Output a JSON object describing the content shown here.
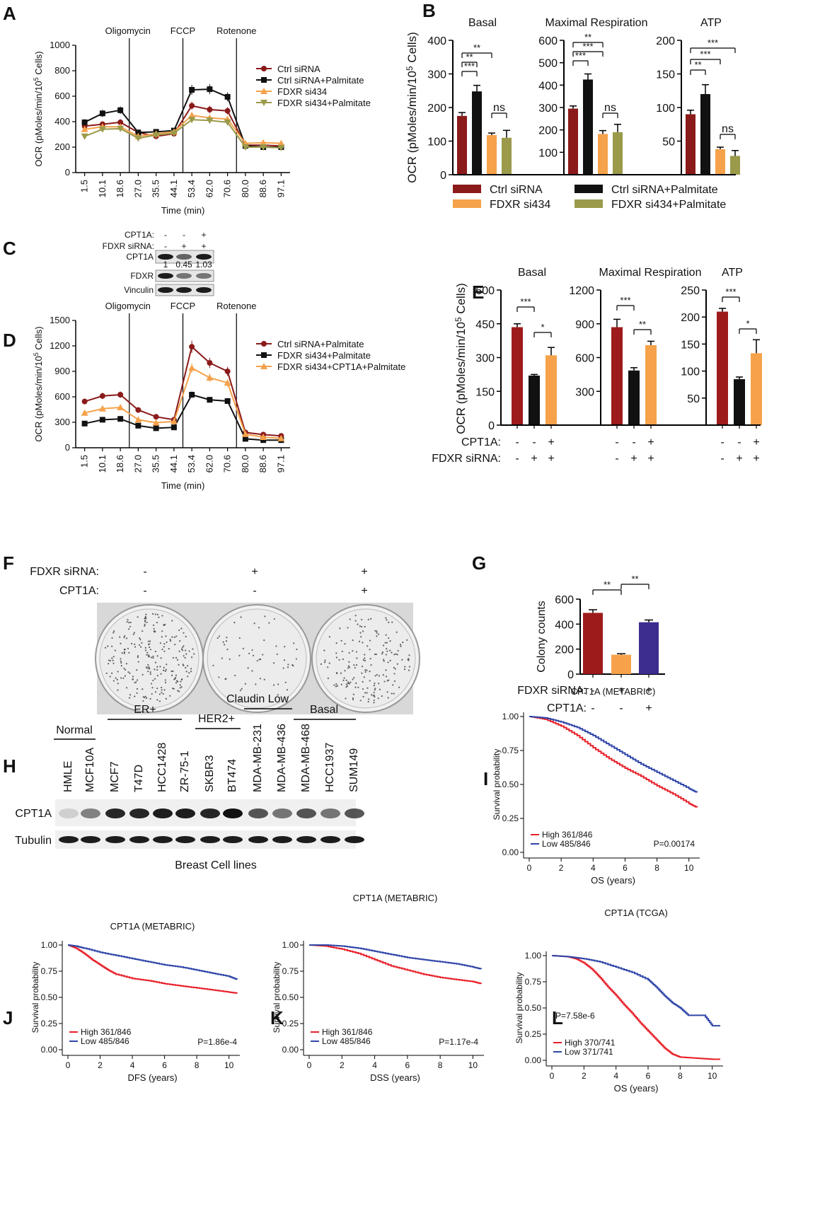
{
  "colors": {
    "ctrl": "#8b1a1a",
    "black": "#111111",
    "orange": "#f5a24b",
    "olive": "#9a9a4a",
    "km_high": "#e8202a",
    "km_low": "#3046a8",
    "purple": "#3c2d8f",
    "dkred": "#9e1b1b"
  },
  "panels": {
    "A": "A",
    "B": "B",
    "C": "C",
    "D": "D",
    "E": "E",
    "F": "F",
    "G": "G",
    "H": "H",
    "I": "I",
    "J": "J",
    "K": "K",
    "L": "L"
  },
  "stats": {
    "ns": "ns",
    "s1": "*",
    "s2": "**",
    "s3": "***"
  },
  "chart_data": [
    {
      "id": "A",
      "type": "line",
      "xlabel": "Time (min)",
      "ylabel": "OCR (pMoles/min/10^5 Cells)",
      "ylabel_main": "OCR (pMoles/min/10",
      "ylabel_exp": "5",
      "ylabel_tail": " Cells)",
      "ylim": [
        0,
        1000
      ],
      "yticks": [
        "0",
        "200",
        "400",
        "600",
        "800",
        "1000"
      ],
      "x": [
        "1.5",
        "10.1",
        "18.6",
        "27.0",
        "35.5",
        "44.1",
        "53.4",
        "62.0",
        "70.6",
        "80.0",
        "88.6",
        "97.1"
      ],
      "injections": [
        "Oligomycin",
        "FCCP",
        "Rotenone"
      ],
      "series": [
        {
          "name": "Ctrl siRNA",
          "values": [
            365,
            380,
            395,
            315,
            285,
            305,
            525,
            495,
            485,
            215,
            215,
            210
          ]
        },
        {
          "name": "Ctrl siRNA+Palmitate",
          "values": [
            395,
            465,
            490,
            315,
            320,
            330,
            650,
            655,
            595,
            210,
            200,
            200
          ]
        },
        {
          "name": "FDXR si434",
          "values": [
            340,
            360,
            360,
            285,
            305,
            320,
            450,
            430,
            420,
            230,
            235,
            230
          ]
        },
        {
          "name": "FDXR si434+Palmitate",
          "values": [
            285,
            340,
            345,
            270,
            295,
            310,
            415,
            410,
            395,
            200,
            200,
            195
          ]
        }
      ]
    },
    {
      "id": "B",
      "type": "bar",
      "ylabel": "OCR (pMoles/min/10^5 Cells)",
      "ylabel_main": "OCR (pMoles/min/10",
      "ylabel_exp": "5",
      "ylabel_tail": " Cells)",
      "legend": [
        "Ctrl siRNA",
        "Ctrl siRNA+Palmitate",
        "FDXR si434",
        "FDXR si434+Palmitate"
      ],
      "groups": [
        {
          "title": "Basal",
          "yticks": [
            "0",
            "100",
            "200",
            "300",
            "400"
          ],
          "ylim": [
            0,
            400
          ],
          "values": [
            175,
            248,
            118,
            110
          ],
          "errors": [
            10,
            18,
            6,
            22
          ]
        },
        {
          "title": "Maximal Respiration",
          "yticks": [
            "100",
            "200",
            "300",
            "400",
            "500",
            "600"
          ],
          "ylim": [
            0,
            600
          ],
          "values": [
            295,
            425,
            182,
            190
          ],
          "errors": [
            12,
            25,
            15,
            35
          ]
        },
        {
          "title": "ATP",
          "yticks": [
            "50",
            "100",
            "150",
            "200"
          ],
          "ylim": [
            0,
            200
          ],
          "values": [
            90,
            120,
            38,
            28
          ],
          "errors": [
            6,
            14,
            3,
            8
          ]
        }
      ]
    },
    {
      "id": "D",
      "type": "line",
      "xlabel": "Time (min)",
      "ylabel": "OCR (pMoles/min/10^5 Cells)",
      "ylabel_main": "OCR (pMoles/min/10",
      "ylabel_exp": "5",
      "ylabel_tail": " Cells)",
      "ylim": [
        0,
        1500
      ],
      "yticks": [
        "0",
        "300",
        "600",
        "900",
        "1200",
        "1500"
      ],
      "x": [
        "1.5",
        "10.1",
        "18.6",
        "27.0",
        "35.5",
        "44.1",
        "53.4",
        "62.0",
        "70.6",
        "80.0",
        "88.6",
        "97.1"
      ],
      "injections": [
        "Oligomycin",
        "FCCP",
        "Rotenone"
      ],
      "series": [
        {
          "name": "Ctrl siRNA+Palmitate",
          "values": [
            545,
            610,
            625,
            445,
            365,
            330,
            1190,
            1000,
            900,
            180,
            155,
            140
          ]
        },
        {
          "name": "FDXR si434+Palmitate",
          "values": [
            285,
            330,
            340,
            260,
            230,
            240,
            625,
            565,
            550,
            105,
            90,
            90
          ]
        },
        {
          "name": "FDXR si434+CPT1A+Palmitate",
          "values": [
            410,
            460,
            475,
            330,
            295,
            310,
            940,
            825,
            765,
            160,
            125,
            110
          ]
        }
      ]
    },
    {
      "id": "E",
      "type": "bar",
      "ylabel": "OCR (pMoles/min/10^5 Cells)",
      "ylabel_main": "OCR (pMoles/min/10",
      "ylabel_exp": "5",
      "ylabel_tail": " Cells)",
      "row_labels": [
        "CPT1A:",
        "FDXR siRNA:"
      ],
      "row_cpt": [
        "-",
        "-",
        "+"
      ],
      "row_fdxr": [
        "-",
        "+",
        "+"
      ],
      "groups": [
        {
          "title": "Basal",
          "yticks": [
            "0",
            "150",
            "300",
            "450",
            "600"
          ],
          "ylim": [
            0,
            600
          ],
          "values": [
            435,
            220,
            310
          ],
          "errors": [
            15,
            5,
            35
          ]
        },
        {
          "title": "Maximal Respiration",
          "yticks": [
            "300",
            "600",
            "900",
            "1200"
          ],
          "ylim": [
            0,
            1200
          ],
          "values": [
            870,
            485,
            710
          ],
          "errors": [
            70,
            25,
            35
          ]
        },
        {
          "title": "ATP",
          "yticks": [
            "50",
            "100",
            "150",
            "200",
            "250"
          ],
          "ylim": [
            0,
            250
          ],
          "values": [
            210,
            85,
            133
          ],
          "errors": [
            6,
            4,
            25
          ]
        }
      ]
    },
    {
      "id": "G",
      "type": "bar",
      "ylabel": "Colony counts",
      "yticks": [
        "0",
        "200",
        "400",
        "600"
      ],
      "ylim": [
        0,
        600
      ],
      "values": [
        490,
        155,
        415
      ],
      "errors": [
        25,
        8,
        18
      ],
      "row_labels": [
        "FDXR siRNA:",
        "CPT1A:"
      ],
      "row_fdxr": [
        "-",
        "+",
        "+"
      ],
      "row_cpt": [
        "-",
        "-",
        "+"
      ]
    },
    {
      "id": "I",
      "type": "line",
      "title": "CPT1A (METABRIC)",
      "xlabel": "OS (years)",
      "ylabel": "Survival probability",
      "xlim": [
        0,
        10.5
      ],
      "ylim": [
        0,
        1
      ],
      "xticks": [
        "0",
        "2",
        "4",
        "6",
        "8",
        "10"
      ],
      "yticks": [
        "0.00",
        "0.25",
        "0.50",
        "0.75",
        "1.00"
      ],
      "legend": [
        "High 361/846",
        "Low  485/846"
      ],
      "pvalue": "P=0.00174",
      "series": [
        {
          "name": "High",
          "x": [
            0,
            1,
            2,
            3,
            4,
            5,
            6,
            7,
            8,
            9,
            10,
            10.5
          ],
          "y": [
            1,
            0.98,
            0.93,
            0.86,
            0.77,
            0.69,
            0.62,
            0.56,
            0.49,
            0.43,
            0.36,
            0.33
          ]
        },
        {
          "name": "Low",
          "x": [
            0,
            1,
            2,
            3,
            4,
            5,
            6,
            7,
            8,
            9,
            10,
            10.5
          ],
          "y": [
            1,
            0.99,
            0.96,
            0.92,
            0.86,
            0.79,
            0.72,
            0.65,
            0.59,
            0.53,
            0.47,
            0.44
          ]
        }
      ]
    },
    {
      "id": "J",
      "type": "line",
      "title": "CPT1A (METABRIC)",
      "xlabel": "DFS (years)",
      "ylabel": "Survival probability",
      "xlim": [
        0,
        10.5
      ],
      "ylim": [
        0,
        1
      ],
      "xticks": [
        "0",
        "2",
        "4",
        "6",
        "8",
        "10"
      ],
      "yticks": [
        "0.00",
        "0.25",
        "0.50",
        "0.75",
        "1.00"
      ],
      "legend": [
        "High 361/846",
        "Low  485/846"
      ],
      "pvalue": "P=1.86e-4",
      "series": [
        {
          "name": "High",
          "x": [
            0,
            0.5,
            1,
            1.5,
            2,
            2.5,
            3,
            4,
            5,
            6,
            7,
            8,
            9,
            10,
            10.5
          ],
          "y": [
            1,
            0.97,
            0.92,
            0.86,
            0.81,
            0.76,
            0.72,
            0.68,
            0.66,
            0.63,
            0.61,
            0.59,
            0.57,
            0.55,
            0.54
          ]
        },
        {
          "name": "Low",
          "x": [
            0,
            0.5,
            1,
            2,
            3,
            4,
            5,
            6,
            7,
            8,
            9,
            10,
            10.5
          ],
          "y": [
            1,
            0.99,
            0.97,
            0.93,
            0.9,
            0.87,
            0.84,
            0.81,
            0.79,
            0.76,
            0.73,
            0.7,
            0.67
          ]
        }
      ]
    },
    {
      "id": "K",
      "type": "line",
      "title": "CPT1A (METABRIC)",
      "xlabel": "DSS (years)",
      "ylabel": "Survival probability",
      "xlim": [
        0,
        10.5
      ],
      "ylim": [
        0,
        1
      ],
      "xticks": [
        "0",
        "2",
        "4",
        "6",
        "8",
        "10"
      ],
      "yticks": [
        "0.00",
        "0.25",
        "0.50",
        "0.75",
        "1.00"
      ],
      "legend": [
        "High 361/846",
        "Low  485/846"
      ],
      "pvalue": "P=1.17e-4",
      "series": [
        {
          "name": "High",
          "x": [
            0,
            1,
            2,
            3,
            4,
            5,
            6,
            7,
            8,
            9,
            10,
            10.5
          ],
          "y": [
            1,
            0.99,
            0.96,
            0.92,
            0.86,
            0.8,
            0.76,
            0.72,
            0.69,
            0.67,
            0.65,
            0.63
          ]
        },
        {
          "name": "Low",
          "x": [
            0,
            1,
            2,
            3,
            4,
            5,
            6,
            7,
            8,
            9,
            10,
            10.5
          ],
          "y": [
            1,
            1,
            0.99,
            0.97,
            0.94,
            0.91,
            0.88,
            0.86,
            0.84,
            0.82,
            0.79,
            0.77
          ]
        }
      ]
    },
    {
      "id": "L",
      "type": "line",
      "title": "CPT1A (TCGA)",
      "xlabel": "OS (years)",
      "ylabel": "Survival probability",
      "xlim": [
        0,
        10.5
      ],
      "ylim": [
        0,
        1
      ],
      "xticks": [
        "0",
        "2",
        "4",
        "6",
        "8",
        "10"
      ],
      "yticks": [
        "0.00",
        "0.25",
        "0.50",
        "0.75",
        "1.00"
      ],
      "legend": [
        "High 370/741",
        "Low  371/741"
      ],
      "pvalue": "P=7.58e-6",
      "series": [
        {
          "name": "High",
          "x": [
            0,
            1,
            1.5,
            2,
            2.5,
            3,
            3.5,
            4,
            4.5,
            5,
            5.5,
            6,
            6.5,
            7,
            7.5,
            8,
            9,
            10,
            10.5
          ],
          "y": [
            1,
            0.99,
            0.97,
            0.93,
            0.87,
            0.79,
            0.7,
            0.62,
            0.53,
            0.45,
            0.36,
            0.28,
            0.2,
            0.12,
            0.06,
            0.03,
            0.02,
            0.01,
            0.01
          ]
        },
        {
          "name": "Low",
          "x": [
            0,
            1,
            2,
            3,
            4,
            5,
            6,
            6.5,
            7,
            7.5,
            8,
            8.5,
            9,
            9.5,
            10,
            10.5
          ],
          "y": [
            1,
            0.99,
            0.97,
            0.94,
            0.89,
            0.84,
            0.77,
            0.7,
            0.62,
            0.55,
            0.5,
            0.43,
            0.43,
            0.43,
            0.33,
            0.33
          ]
        }
      ]
    }
  ],
  "blotC": {
    "rows": [
      "CPT1A:",
      "FDXR siRNA:"
    ],
    "cpt": [
      "-",
      "-",
      "+"
    ],
    "fdxr": [
      "-",
      "+",
      "+"
    ],
    "bands": [
      "CPT1A",
      "FDXR",
      "Vinculin"
    ],
    "quant": [
      "1",
      "0.45",
      "1.03"
    ]
  },
  "plateF": {
    "fdxr_label": "FDXR siRNA:",
    "cpt_label": "CPT1A:",
    "fdxr": [
      "-",
      "+",
      "+"
    ],
    "cpt": [
      "-",
      "-",
      "+"
    ]
  },
  "blotH": {
    "groups": [
      "Normal",
      "ER+",
      "HER2+",
      "Claudin Low",
      "Basal"
    ],
    "lines": [
      "HMLE",
      "MCF10A",
      "MCF7",
      "T47D",
      "HCC1428",
      "ZR-75-1",
      "SKBR3",
      "BT474",
      "MDA-MB-231",
      "MDA-MB-436",
      "MDA-MB-468",
      "HCC1937",
      "SUM149"
    ],
    "bands": [
      "CPT1A",
      "Tubulin"
    ],
    "footer": "Breast Cell lines"
  }
}
